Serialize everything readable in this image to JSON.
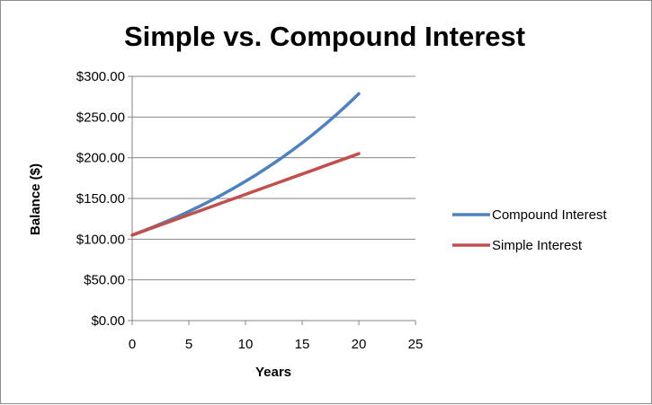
{
  "chart_data": {
    "type": "line",
    "title": "Simple vs. Compound Interest",
    "xlabel": "Years",
    "ylabel": "Balance ($)",
    "xlim": [
      0,
      25
    ],
    "ylim": [
      0,
      300
    ],
    "x_ticks": [
      "0",
      "5",
      "10",
      "15",
      "20",
      "25"
    ],
    "y_ticks": [
      "$0.00",
      "$50.00",
      "$100.00",
      "$150.00",
      "$200.00",
      "$250.00",
      "$300.00"
    ],
    "grid": "horizontal",
    "legend_position": "right",
    "series": [
      {
        "name": "Compound Interest",
        "color": "#4f81bd",
        "x": [
          0,
          1,
          2,
          3,
          4,
          5,
          6,
          7,
          8,
          9,
          10,
          11,
          12,
          13,
          14,
          15,
          16,
          17,
          18,
          19,
          20
        ],
        "y": [
          105.0,
          110.25,
          115.76,
          121.55,
          127.63,
          134.01,
          140.71,
          147.75,
          155.13,
          162.89,
          171.03,
          179.59,
          188.56,
          197.99,
          207.89,
          218.29,
          229.2,
          240.66,
          252.7,
          265.33,
          278.6
        ]
      },
      {
        "name": "Simple Interest",
        "color": "#c0504d",
        "x": [
          0,
          1,
          2,
          3,
          4,
          5,
          6,
          7,
          8,
          9,
          10,
          11,
          12,
          13,
          14,
          15,
          16,
          17,
          18,
          19,
          20
        ],
        "y": [
          105,
          110,
          115,
          120,
          125,
          130,
          135,
          140,
          145,
          150,
          155,
          160,
          165,
          170,
          175,
          180,
          185,
          190,
          195,
          200,
          205
        ]
      }
    ]
  }
}
